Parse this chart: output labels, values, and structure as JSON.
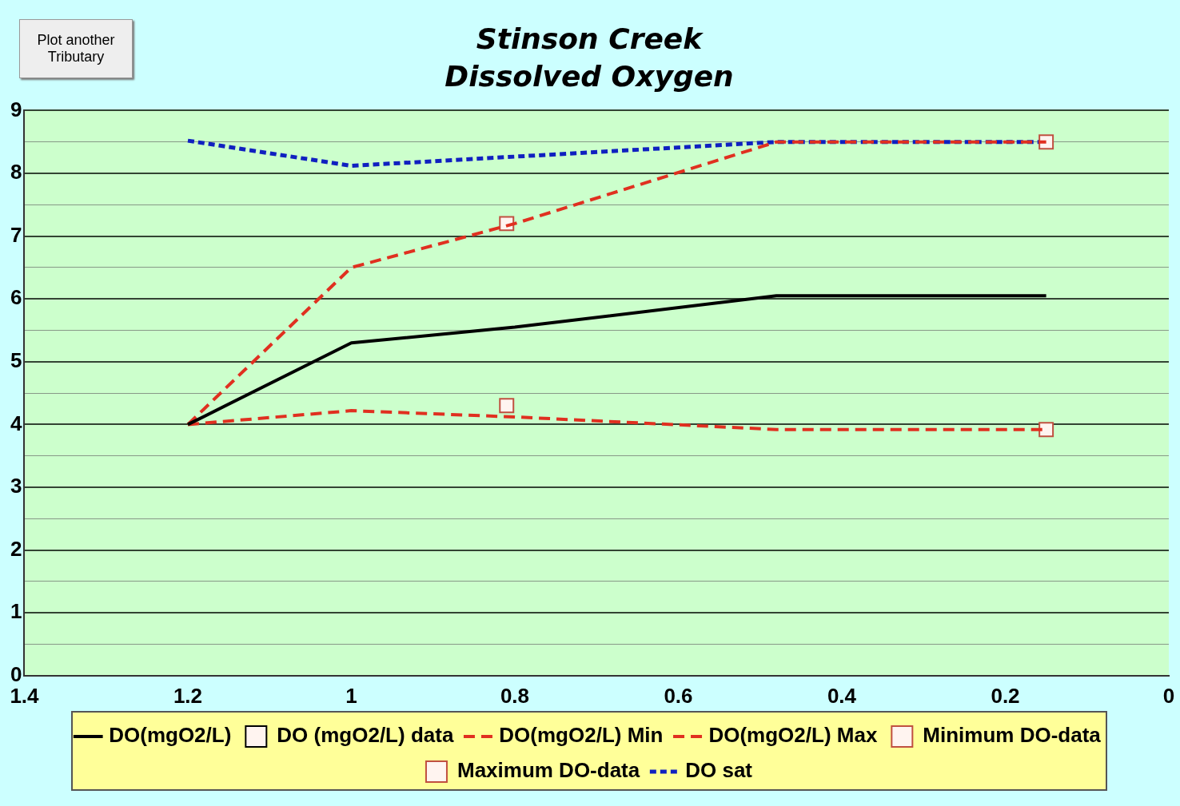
{
  "chart_data": {
    "type": "line",
    "title": "Stinson Creek",
    "subtitle": "Dissolved Oxygen",
    "annotations": [
      "Plot another Tributary"
    ],
    "xlim": [
      1.4,
      0
    ],
    "xticks": [
      1.4,
      1.2,
      1,
      0.8,
      0.6,
      0.4,
      0.2,
      0
    ],
    "ylim": [
      0,
      9
    ],
    "yticks": [
      0,
      {
        "value": 0.5,
        "label": null
      },
      1,
      {
        "value": 1.5,
        "label": null
      },
      2,
      {
        "value": 2.5,
        "label": null
      },
      3,
      {
        "value": 3.5,
        "label": null
      },
      4,
      {
        "value": 4.5,
        "label": null
      },
      5,
      {
        "value": 5.5,
        "label": null
      },
      6,
      {
        "value": 6.5,
        "label": null
      },
      7,
      {
        "value": 7.5,
        "label": null
      },
      8,
      {
        "value": 8.5,
        "label": null
      },
      9
    ],
    "grid": "y",
    "legend": "bottom",
    "series": [
      {
        "name": "DO(mgO2/L)",
        "color": "#000000",
        "line_style": "solid",
        "marker": "none",
        "x": [
          1.2,
          1.0,
          0.8,
          0.48,
          0.15
        ],
        "values": [
          4.0,
          5.3,
          5.55,
          6.05,
          6.05
        ]
      },
      {
        "name": "DO (mgO2/L) data",
        "type": "scatter",
        "color": "#000000",
        "marker": "square"
      },
      {
        "name": "DO(mgO2/L) Min",
        "color": "#e03020",
        "line_style": "dashed",
        "marker": "none",
        "x": [
          1.2,
          1.0,
          0.8,
          0.48,
          0.15
        ],
        "values": [
          4.0,
          4.22,
          4.12,
          3.92,
          3.92
        ]
      },
      {
        "name": "DO(mgO2/L) Max",
        "color": "#e03020",
        "line_style": "dashed",
        "marker": "none",
        "x": [
          1.2,
          1.0,
          0.8,
          0.48,
          0.15
        ],
        "values": [
          4.0,
          6.5,
          7.2,
          8.5,
          8.5
        ]
      },
      {
        "name": "Minimum DO-data",
        "type": "scatter",
        "color": "#c05040",
        "marker": "square",
        "x": [
          0.81,
          0.15
        ],
        "values": [
          4.3,
          3.92
        ]
      },
      {
        "name": "Maximum DO-data",
        "type": "scatter",
        "color": "#c05040",
        "marker": "square",
        "x": [
          0.81,
          0.15
        ],
        "values": [
          7.2,
          8.5
        ]
      },
      {
        "name": "DO sat",
        "color": "#1020c0",
        "line_style": "dotted",
        "marker": "none",
        "x": [
          1.2,
          1.0,
          0.48,
          0.15
        ],
        "values": [
          8.52,
          8.12,
          8.5,
          8.5
        ]
      }
    ]
  }
}
